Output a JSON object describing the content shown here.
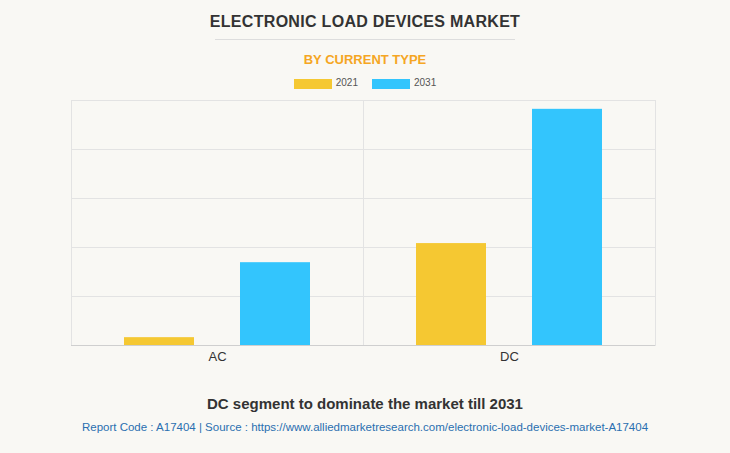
{
  "chart_data": {
    "type": "bar",
    "title": "ELECTRONIC LOAD DEVICES MARKET",
    "subtitle": "BY CURRENT TYPE",
    "caption": "DC segment to dominate the market till 2031",
    "source": "Report Code : A17404  |  Source : https://www.alliedmarketresearch.com/electronic-load-devices-market-A17404",
    "categories": [
      "AC",
      "DC"
    ],
    "series": [
      {
        "name": "2021",
        "color": "#f5c832",
        "values": [
          0.16,
          2.08
        ]
      },
      {
        "name": "2031",
        "color": "#33c5fd",
        "values": [
          1.69,
          4.82
        ]
      }
    ],
    "ylim": [
      0,
      5
    ],
    "yticks": [
      0,
      1,
      2,
      3,
      4,
      5
    ],
    "grid": true,
    "legend": "top",
    "tick_labels": "x"
  }
}
